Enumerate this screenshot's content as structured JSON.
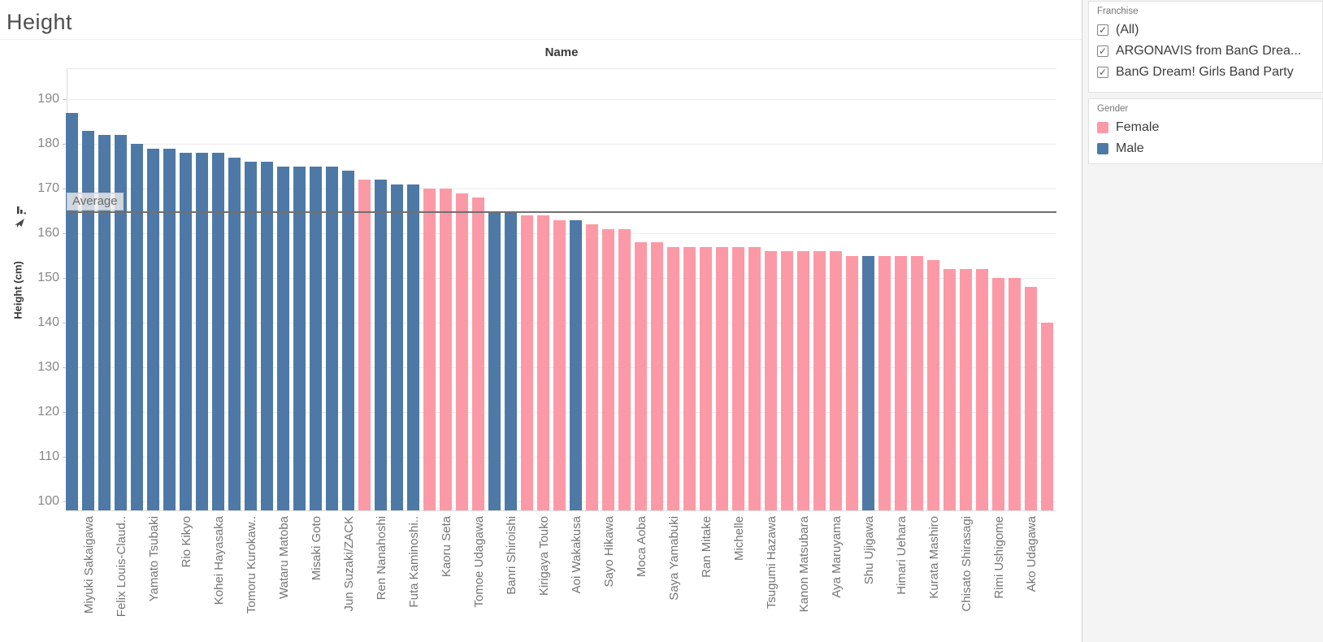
{
  "title": "Height",
  "column_field_label": "Name",
  "y_axis_title": "Height (cm)",
  "average_label": "Average",
  "colors": {
    "male": "#4e79a7",
    "female": "#fb9aa6"
  },
  "left_toolbar_icons": [
    "mini-bar-chart-icon",
    "pin-icon"
  ],
  "filters": {
    "franchise": {
      "label": "Franchise",
      "options": [
        {
          "label": "(All)",
          "checked": true
        },
        {
          "label": "ARGONAVIS from BanG Drea...",
          "checked": true
        },
        {
          "label": "BanG Dream! Girls Band Party",
          "checked": true
        }
      ]
    }
  },
  "legend": {
    "label": "Gender",
    "items": [
      {
        "label": "Female",
        "color": "#fb9aa6"
      },
      {
        "label": "Male",
        "color": "#4e79a7"
      }
    ]
  },
  "chart_data": {
    "type": "bar",
    "title": "Height",
    "xlabel": "Name",
    "ylabel": "Height (cm)",
    "ylim": [
      98,
      197
    ],
    "y_ticks": [
      190,
      180,
      170,
      160,
      150,
      140,
      130,
      120,
      110,
      100
    ],
    "grid": "horizontal",
    "legend_position": "right",
    "average_value": 164.7,
    "bars": [
      {
        "name": "",
        "gender": "Male",
        "height": 187
      },
      {
        "name": "Miyuki Sakaigawa",
        "gender": "Male",
        "height": 183
      },
      {
        "name": "",
        "gender": "Male",
        "height": 182
      },
      {
        "name": "Felix Louis-Claud..",
        "gender": "Male",
        "height": 182
      },
      {
        "name": "",
        "gender": "Male",
        "height": 180
      },
      {
        "name": "Yamato Tsubaki",
        "gender": "Male",
        "height": 179
      },
      {
        "name": "",
        "gender": "Male",
        "height": 179
      },
      {
        "name": "Rio Kikyo",
        "gender": "Male",
        "height": 178
      },
      {
        "name": "",
        "gender": "Male",
        "height": 178
      },
      {
        "name": "Kohei Hayasaka",
        "gender": "Male",
        "height": 178
      },
      {
        "name": "",
        "gender": "Male",
        "height": 177
      },
      {
        "name": "Tomoru Kurokaw..",
        "gender": "Male",
        "height": 176
      },
      {
        "name": "",
        "gender": "Male",
        "height": 176
      },
      {
        "name": "Wataru Matoba",
        "gender": "Male",
        "height": 175
      },
      {
        "name": "",
        "gender": "Male",
        "height": 175
      },
      {
        "name": "Misaki Goto",
        "gender": "Male",
        "height": 175
      },
      {
        "name": "",
        "gender": "Male",
        "height": 175
      },
      {
        "name": "Jun Suzaki/ZACK",
        "gender": "Male",
        "height": 174
      },
      {
        "name": "",
        "gender": "Female",
        "height": 172
      },
      {
        "name": "Ren Nanahoshi",
        "gender": "Male",
        "height": 172
      },
      {
        "name": "",
        "gender": "Male",
        "height": 171
      },
      {
        "name": "Futa Kaminoshi..",
        "gender": "Male",
        "height": 171
      },
      {
        "name": "",
        "gender": "Female",
        "height": 170
      },
      {
        "name": "Kaoru Seta",
        "gender": "Female",
        "height": 170
      },
      {
        "name": "",
        "gender": "Female",
        "height": 169
      },
      {
        "name": "Tomoe Udagawa",
        "gender": "Female",
        "height": 168
      },
      {
        "name": "",
        "gender": "Male",
        "height": 165
      },
      {
        "name": "Banri Shiroishi",
        "gender": "Male",
        "height": 165
      },
      {
        "name": "",
        "gender": "Female",
        "height": 164
      },
      {
        "name": "Kirigaya Touko",
        "gender": "Female",
        "height": 164
      },
      {
        "name": "",
        "gender": "Female",
        "height": 163
      },
      {
        "name": "Aoi Wakakusa",
        "gender": "Male",
        "height": 163
      },
      {
        "name": "",
        "gender": "Female",
        "height": 162
      },
      {
        "name": "Sayo Hikawa",
        "gender": "Female",
        "height": 161
      },
      {
        "name": "",
        "gender": "Female",
        "height": 161
      },
      {
        "name": "Moca Aoba",
        "gender": "Female",
        "height": 158
      },
      {
        "name": "",
        "gender": "Female",
        "height": 158
      },
      {
        "name": "Saya Yamabuki",
        "gender": "Female",
        "height": 157
      },
      {
        "name": "",
        "gender": "Female",
        "height": 157
      },
      {
        "name": "Ran Mitake",
        "gender": "Female",
        "height": 157
      },
      {
        "name": "",
        "gender": "Female",
        "height": 157
      },
      {
        "name": "Michelle",
        "gender": "Female",
        "height": 157
      },
      {
        "name": "",
        "gender": "Female",
        "height": 157
      },
      {
        "name": "Tsugumi Hazawa",
        "gender": "Female",
        "height": 156
      },
      {
        "name": "",
        "gender": "Female",
        "height": 156
      },
      {
        "name": "Kanon Matsubara",
        "gender": "Female",
        "height": 156
      },
      {
        "name": "",
        "gender": "Female",
        "height": 156
      },
      {
        "name": "Aya Maruyama",
        "gender": "Female",
        "height": 156
      },
      {
        "name": "",
        "gender": "Female",
        "height": 155
      },
      {
        "name": "Shu Ujigawa",
        "gender": "Male",
        "height": 155
      },
      {
        "name": "",
        "gender": "Female",
        "height": 155
      },
      {
        "name": "Himari Uehara",
        "gender": "Female",
        "height": 155
      },
      {
        "name": "",
        "gender": "Female",
        "height": 155
      },
      {
        "name": "Kurata Mashiro",
        "gender": "Female",
        "height": 154
      },
      {
        "name": "",
        "gender": "Female",
        "height": 152
      },
      {
        "name": "Chisato Shirasagi",
        "gender": "Female",
        "height": 152
      },
      {
        "name": "",
        "gender": "Female",
        "height": 152
      },
      {
        "name": "Rimi Ushigome",
        "gender": "Female",
        "height": 150
      },
      {
        "name": "",
        "gender": "Female",
        "height": 150
      },
      {
        "name": "Ako Udagawa",
        "gender": "Female",
        "height": 148
      },
      {
        "name": "",
        "gender": "Female",
        "height": 140
      }
    ]
  }
}
